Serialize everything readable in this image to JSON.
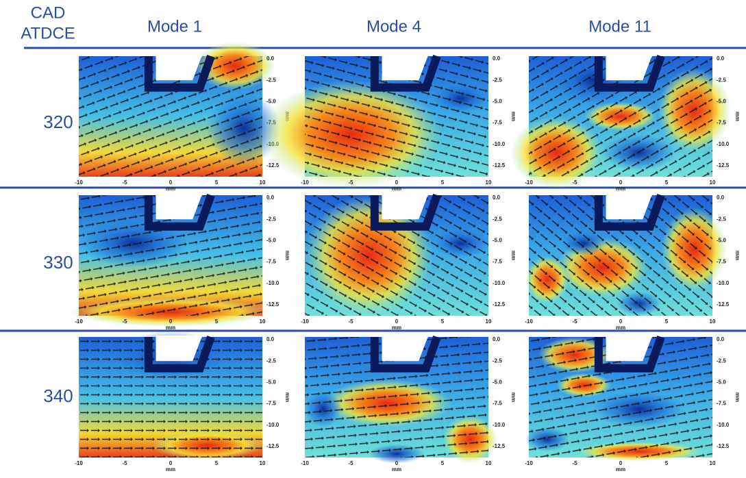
{
  "corner": [
    "CAD",
    "ATDCE"
  ],
  "columns": [
    "Mode 1",
    "Mode 4",
    "Mode 11"
  ],
  "rows": [
    "320",
    "330",
    "340"
  ],
  "axis": {
    "x_ticks": [
      "-10",
      "-5",
      "0",
      "5",
      "10"
    ],
    "y_ticks": [
      "0.0",
      "-2.5",
      "-5.0",
      "-7.5",
      "-10.0",
      "-12.5"
    ],
    "x_unit": "mm",
    "y_unit": "mm"
  }
}
